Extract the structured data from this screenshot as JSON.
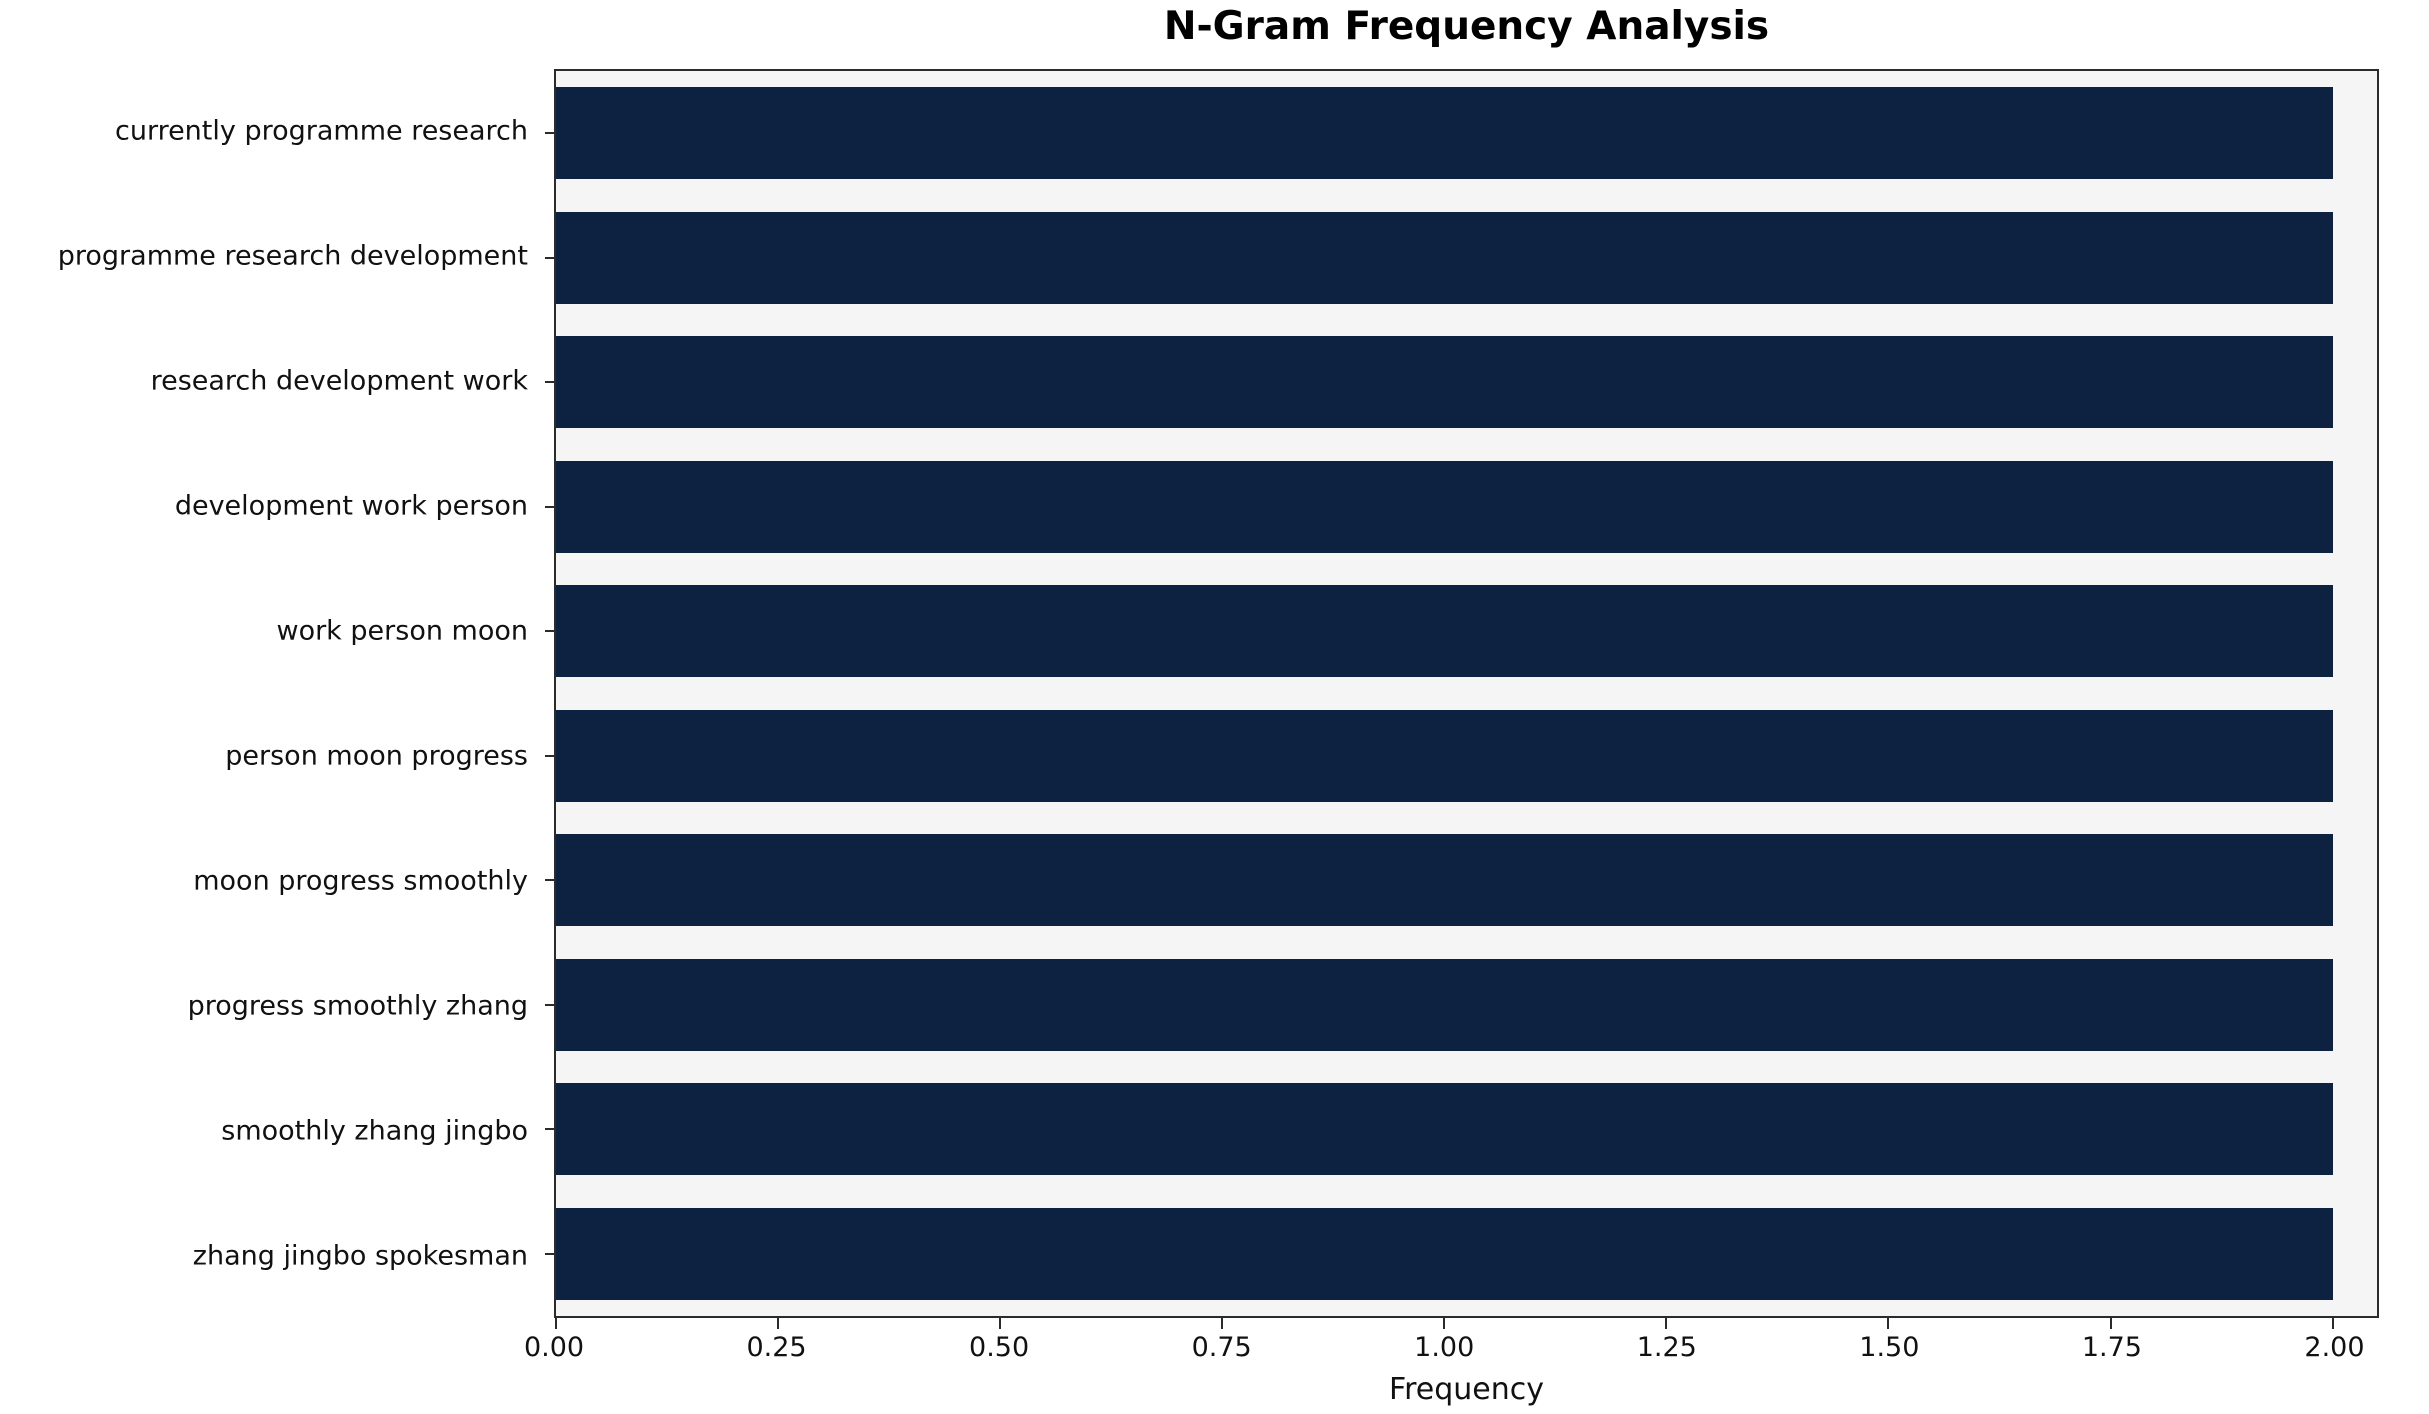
{
  "title": "N-Gram Frequency Analysis",
  "colors": {
    "bar": "#0d2240",
    "plot_background": "#f5f5f5",
    "page_background": "#ffffff",
    "spine": "#2b2b2b",
    "text": "#111111"
  },
  "chart_data": {
    "type": "bar",
    "orientation": "horizontal",
    "title": "N-Gram Frequency Analysis",
    "xlabel": "Frequency",
    "ylabel": "",
    "categories": [
      "currently programme research",
      "programme research development",
      "research development work",
      "development work person",
      "work person moon",
      "person moon progress",
      "moon progress smoothly",
      "progress smoothly zhang",
      "smoothly zhang jingbo",
      "zhang jingbo spokesman"
    ],
    "values": [
      2,
      2,
      2,
      2,
      2,
      2,
      2,
      2,
      2,
      2
    ],
    "xlim": [
      0,
      2.05
    ],
    "xticks": [
      0.0,
      0.25,
      0.5,
      0.75,
      1.0,
      1.25,
      1.5,
      1.75,
      2.0
    ],
    "xtick_labels": [
      "0.00",
      "0.25",
      "0.50",
      "0.75",
      "1.00",
      "1.25",
      "1.50",
      "1.75",
      "2.00"
    ],
    "grid": false,
    "legend": null,
    "bar_color": "#0d2240",
    "plot_background": "#f5f5f5",
    "bar_fraction_of_slot": 0.74
  }
}
